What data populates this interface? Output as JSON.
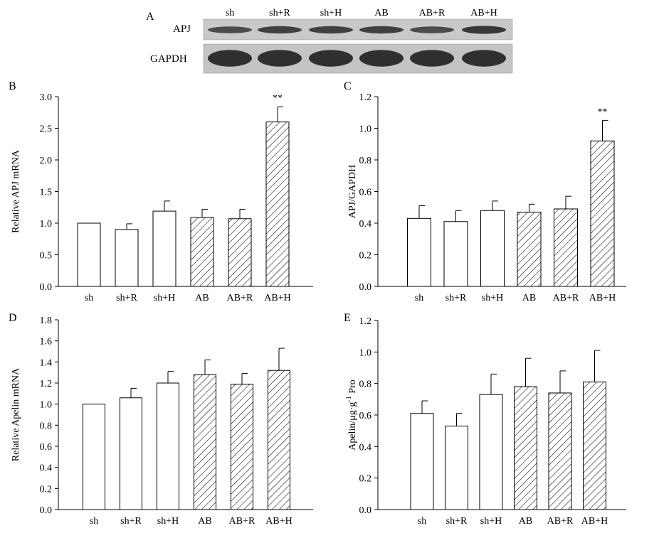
{
  "colors": {
    "ink": "#000000",
    "bar_fill": "#ffffff",
    "blot_bg": "#c9c9c9",
    "blot_band": "#2b2b2b"
  },
  "western_blot": {
    "panel": "A",
    "lanes": [
      "sh",
      "sh+R",
      "sh+H",
      "AB",
      "AB+R",
      "AB+H"
    ],
    "rows": [
      {
        "label": "APJ",
        "intensity": [
          0.55,
          0.7,
          0.7,
          0.7,
          0.55,
          0.85
        ]
      },
      {
        "label": "GAPDH",
        "intensity": [
          0.95,
          0.95,
          0.95,
          0.95,
          0.95,
          0.95
        ]
      }
    ]
  },
  "chart_data": [
    {
      "panel": "B",
      "type": "bar",
      "title": "",
      "xlabel": "",
      "ylabel": "Relative APJ mRNA",
      "categories": [
        "sh",
        "sh+R",
        "sh+H",
        "AB",
        "AB+R",
        "AB+H"
      ],
      "values": [
        1.0,
        0.9,
        1.19,
        1.09,
        1.07,
        2.6
      ],
      "errors": [
        0,
        0.09,
        0.16,
        0.13,
        0.15,
        0.24
      ],
      "hatched": [
        false,
        false,
        false,
        true,
        true,
        true
      ],
      "annotations": [
        "",
        "",
        "",
        "",
        "",
        "**"
      ],
      "ylim": [
        0,
        3.0
      ],
      "yticks": [
        "0.0",
        "0.5",
        "1.0",
        "1.5",
        "2.0",
        "2.5",
        "3.0"
      ]
    },
    {
      "panel": "C",
      "type": "bar",
      "title": "",
      "xlabel": "",
      "ylabel": "APJ/GAPDH",
      "categories": [
        "sh",
        "sh+R",
        "sh+H",
        "AB",
        "AB+R",
        "AB+H"
      ],
      "values": [
        0.43,
        0.41,
        0.48,
        0.47,
        0.49,
        0.92
      ],
      "errors": [
        0.08,
        0.07,
        0.06,
        0.05,
        0.08,
        0.13
      ],
      "hatched": [
        false,
        false,
        false,
        true,
        true,
        true
      ],
      "annotations": [
        "",
        "",
        "",
        "",
        "",
        "**"
      ],
      "ylim": [
        0,
        1.2
      ],
      "yticks": [
        "0.0",
        "0.2",
        "0.4",
        "0.6",
        "0.8",
        "1.0",
        "1.2"
      ]
    },
    {
      "panel": "D",
      "type": "bar",
      "title": "",
      "xlabel": "",
      "ylabel": "Relative Apelin mRNA",
      "categories": [
        "sh",
        "sh+R",
        "sh+H",
        "AB",
        "AB+R",
        "AB+H"
      ],
      "values": [
        1.0,
        1.06,
        1.2,
        1.28,
        1.19,
        1.32
      ],
      "errors": [
        0,
        0.09,
        0.11,
        0.14,
        0.1,
        0.21
      ],
      "hatched": [
        false,
        false,
        false,
        true,
        true,
        true
      ],
      "annotations": [
        "",
        "",
        "",
        "",
        "",
        ""
      ],
      "ylim": [
        0,
        1.8
      ],
      "yticks": [
        "0.0",
        "0.2",
        "0.4",
        "0.6",
        "0.8",
        "1.0",
        "1.2",
        "1.4",
        "1.6",
        "1.8"
      ]
    },
    {
      "panel": "E",
      "type": "bar",
      "title": "",
      "xlabel": "",
      "ylabel": "Apelin/μg·g",
      "ylabel_superscript": "-1",
      "ylabel_suffix": " Pro",
      "categories": [
        "sh",
        "sh+R",
        "sh+H",
        "AB",
        "AB+R",
        "AB+H"
      ],
      "values": [
        0.61,
        0.53,
        0.73,
        0.78,
        0.74,
        0.81
      ],
      "errors": [
        0.08,
        0.08,
        0.13,
        0.18,
        0.14,
        0.2
      ],
      "hatched": [
        false,
        false,
        false,
        true,
        true,
        true
      ],
      "annotations": [
        "",
        "",
        "",
        "",
        "",
        ""
      ],
      "ylim": [
        0,
        1.2
      ],
      "yticks": [
        "0.0",
        "0.2",
        "0.4",
        "0.6",
        "0.8",
        "1.0",
        "1.2"
      ]
    }
  ]
}
